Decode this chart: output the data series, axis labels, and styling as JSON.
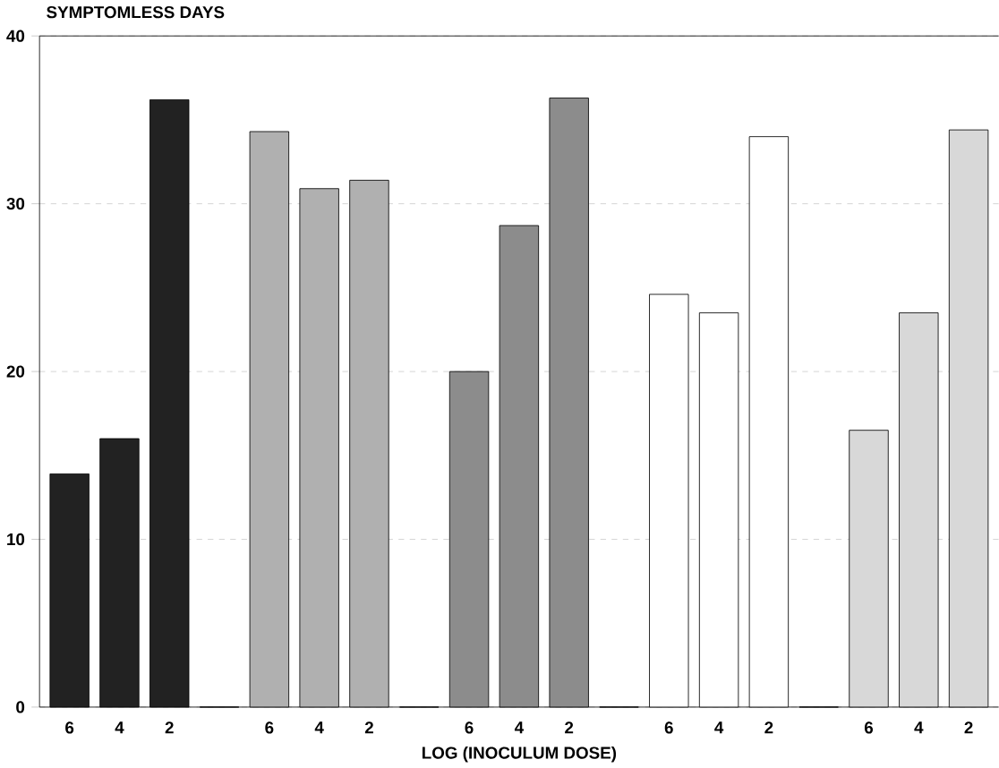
{
  "chart_data": {
    "type": "bar",
    "title": "SYMPTOMLESS DAYS",
    "xlabel": "LOG (INOCULUM DOSE)",
    "categories": [
      "6",
      "4",
      "2",
      null,
      "6",
      "4",
      "2",
      null,
      "6",
      "4",
      "2",
      null,
      "6",
      "4",
      "2",
      null,
      "6",
      "4",
      "2"
    ],
    "values": [
      13.9,
      16.0,
      36.2,
      0,
      34.3,
      30.9,
      31.4,
      0,
      20.0,
      28.7,
      36.3,
      0,
      24.6,
      23.5,
      34.0,
      0,
      16.5,
      23.5,
      34.4
    ],
    "colors": [
      "#222222",
      "#222222",
      "#222222",
      "#ffffff",
      "#b0b0b0",
      "#b0b0b0",
      "#b0b0b0",
      "#ffffff",
      "#8c8c8c",
      "#8c8c8c",
      "#8c8c8c",
      "#ffffff",
      "#ffffff",
      "#ffffff",
      "#ffffff",
      "#ffffff",
      "#d8d8d8",
      "#d8d8d8",
      "#d8d8d8"
    ],
    "ylim": [
      0,
      40
    ],
    "yticks": [
      0,
      10,
      20,
      30,
      40
    ],
    "grid": "y"
  }
}
